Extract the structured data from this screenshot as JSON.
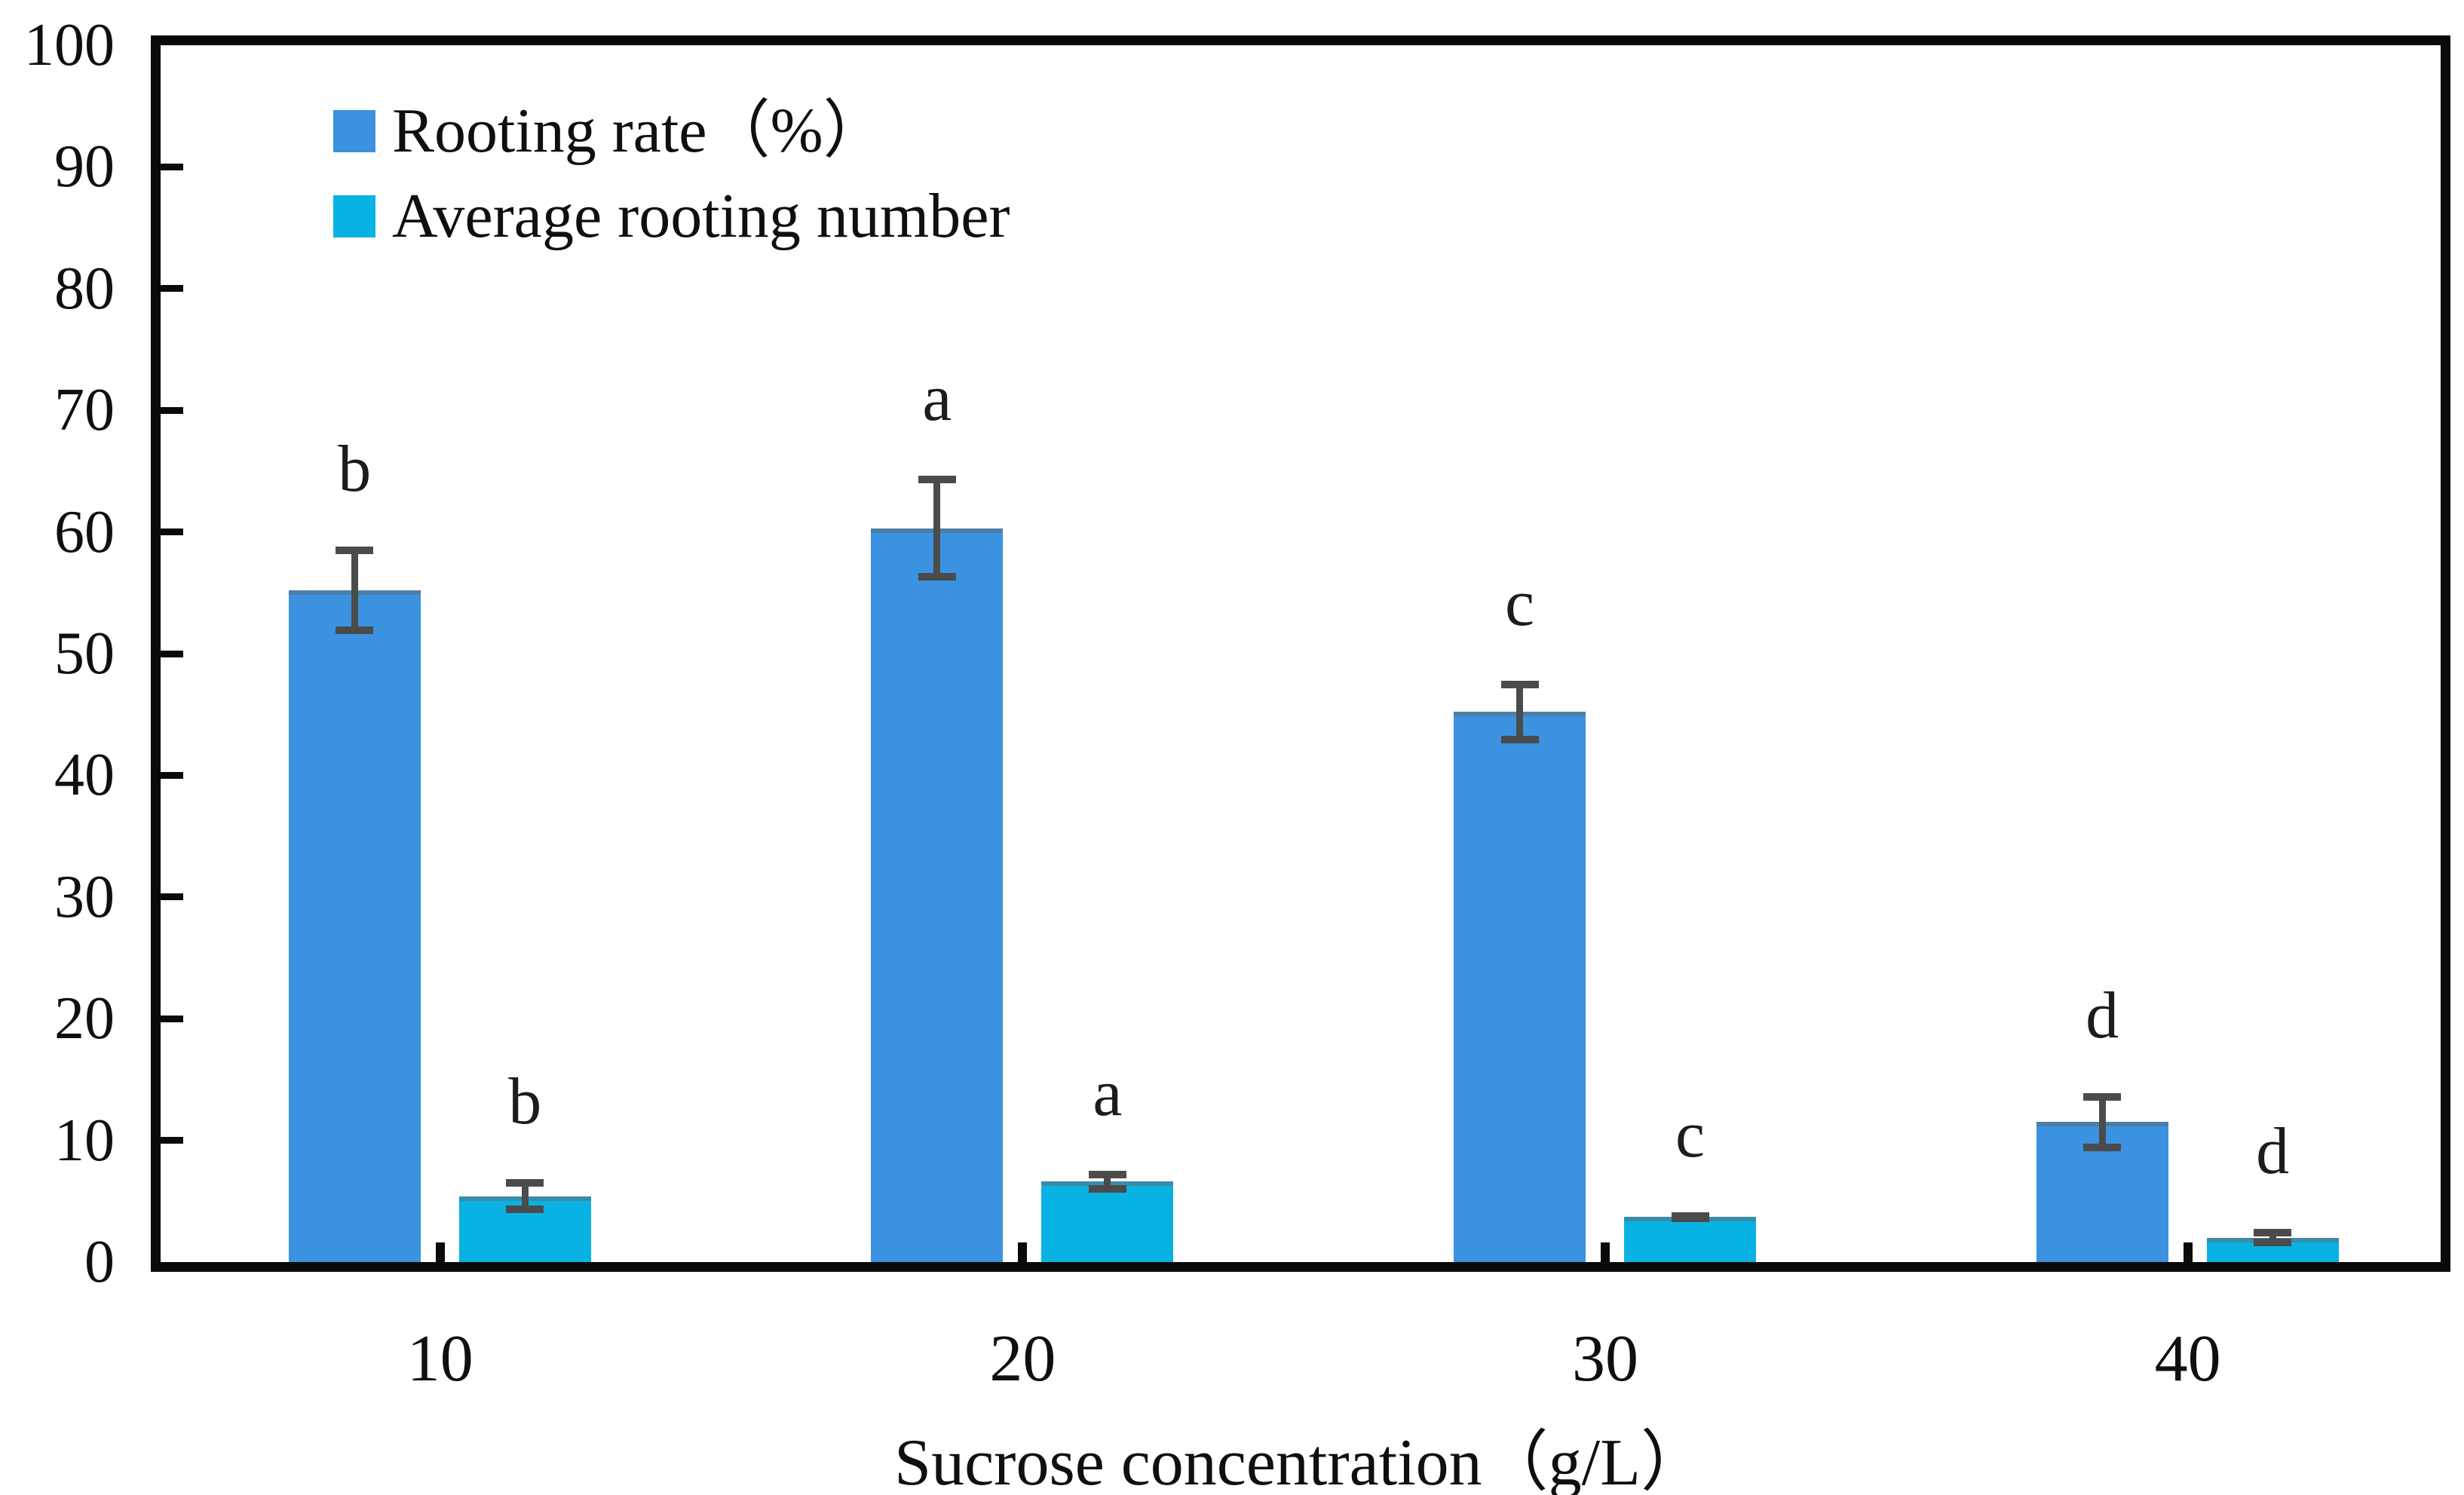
{
  "figure": {
    "background": "#ffffff",
    "axis_color": "#0a0a0a",
    "text_color": "#0f0f0f"
  },
  "chart_data": {
    "type": "bar",
    "title": "",
    "xlabel": "Sucrose concentration（g/L）",
    "ylabel": "",
    "categories": [
      "10",
      "20",
      "30",
      "40"
    ],
    "ylim": [
      0,
      100
    ],
    "yticks": [
      0,
      10,
      20,
      30,
      40,
      50,
      60,
      70,
      80,
      90,
      100
    ],
    "grid": false,
    "legend_position": "top-left-inside",
    "error_bar_color": "#4b4b4b",
    "series": [
      {
        "name": "Rooting rate（%）",
        "color": "#3B92E0",
        "values": [
          55.2,
          60.3,
          45.2,
          11.5
        ],
        "error_bars": [
          3.6,
          4.3,
          2.6,
          2.4
        ],
        "sig_letters": [
          "b",
          "a",
          "c",
          "d"
        ]
      },
      {
        "name": "Average rooting number",
        "color": "#08B3E3",
        "values": [
          5.4,
          6.6,
          3.7,
          2.0
        ],
        "error_bars": [
          1.4,
          0.9,
          0.4,
          0.7
        ],
        "sig_letters": [
          "b",
          "a",
          "c",
          "d"
        ]
      }
    ]
  }
}
